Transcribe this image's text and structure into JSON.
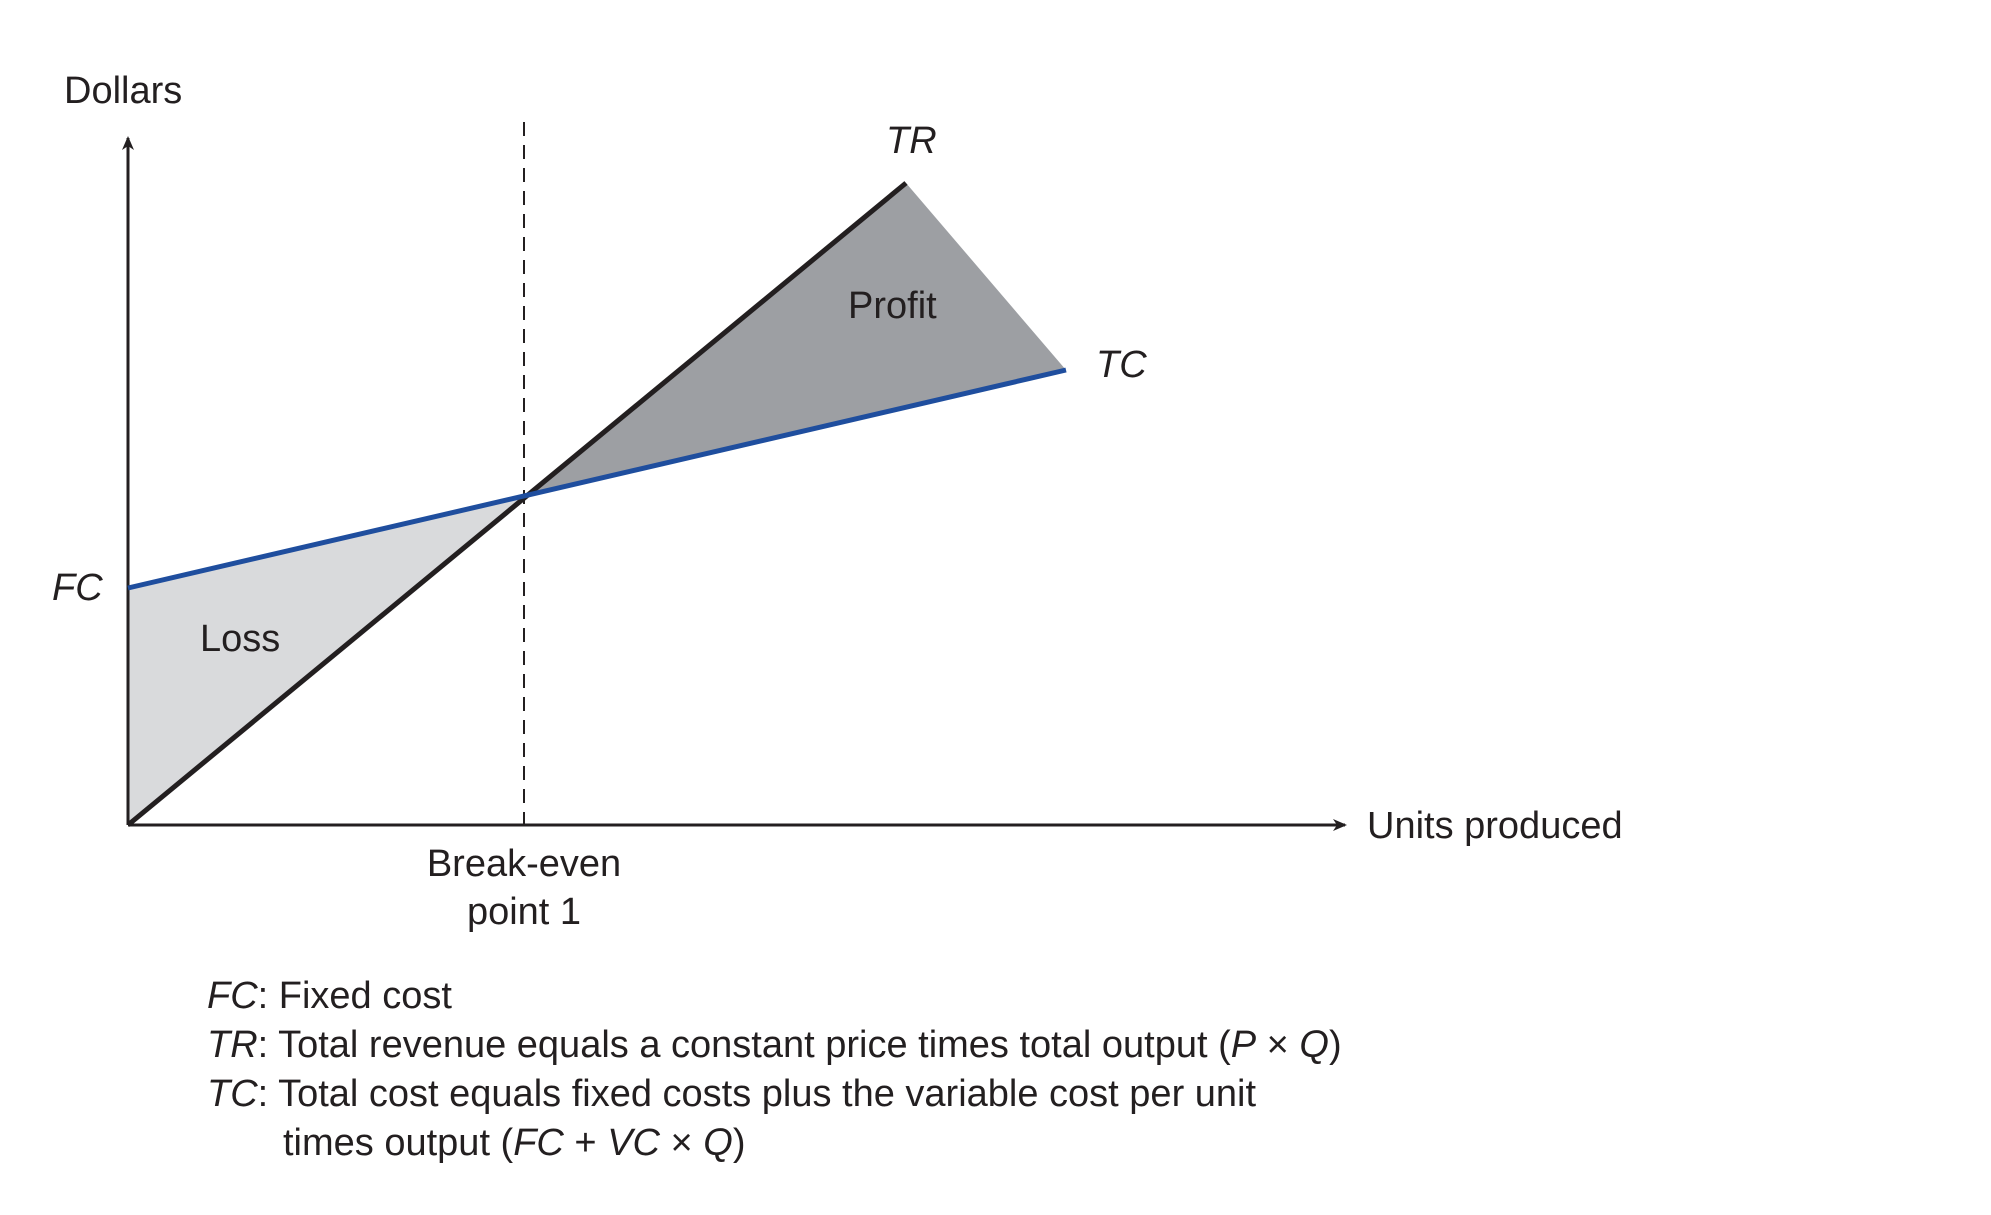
{
  "diagram": {
    "y_axis_label": "Dollars",
    "x_axis_label": "Units produced",
    "fc_label": "FC",
    "tr_label": "TR",
    "tc_label": "TC",
    "profit_label": "Profit",
    "loss_label": "Loss",
    "breakeven_line1": "Break-even",
    "breakeven_line2": "point 1"
  },
  "legend": {
    "fc_key": "FC",
    "fc_text": ": Fixed cost",
    "tr_key": "TR",
    "tr_text": ": Total revenue equals a constant price times total output (",
    "tr_formula_p": "P",
    "tr_formula_times": " × ",
    "tr_formula_q": "Q",
    "tr_close": ")",
    "tc_key": "TC",
    "tc_text": ": Total cost equals fixed costs plus the variable cost per unit",
    "tc_line2_text": "times output (",
    "tc_formula_fc": "FC",
    "tc_formula_plus": " + ",
    "tc_formula_vc": "VC",
    "tc_formula_times": " × ",
    "tc_formula_q": "Q",
    "tc_close": ")"
  },
  "colors": {
    "tr_line": "#231f20",
    "tc_line": "#1f4e9e",
    "profit_fill": "#9d9fa3",
    "loss_fill": "#d9dadc",
    "axis": "#231f20"
  }
}
